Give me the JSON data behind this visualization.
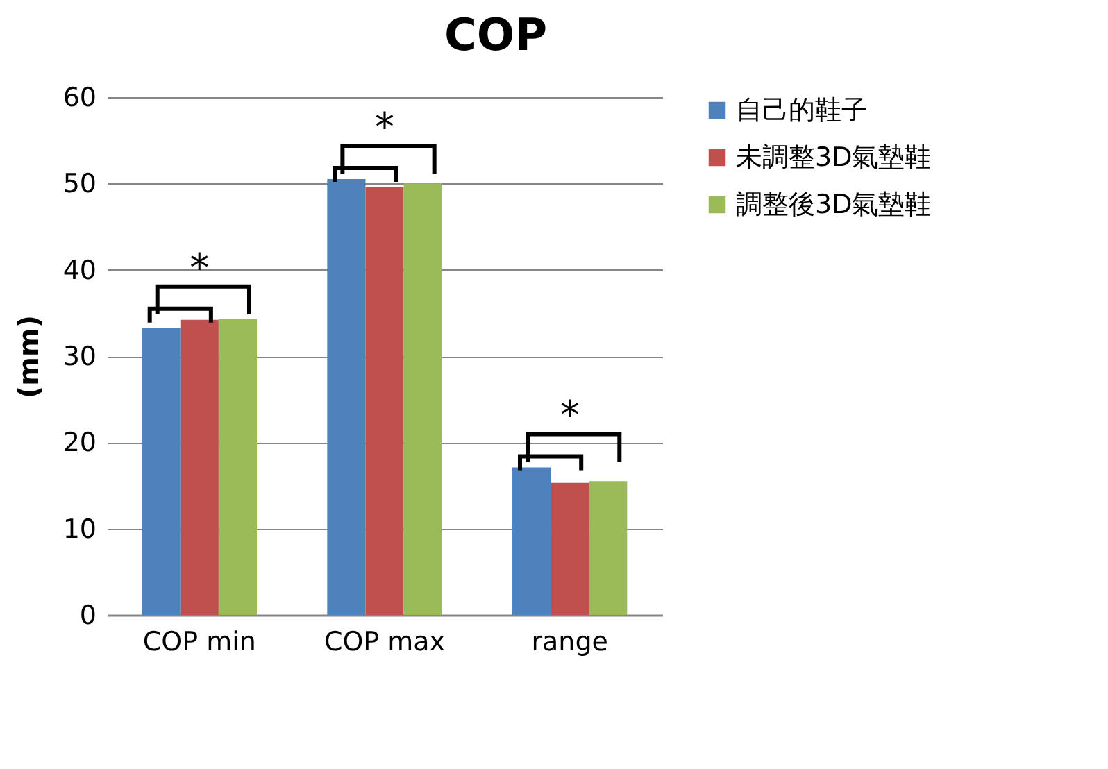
{
  "chart_data": {
    "type": "bar",
    "title": "COP",
    "ylabel": "(mm)",
    "categories": [
      "COP min",
      "COP max",
      "range"
    ],
    "series": [
      {
        "name": "自己的鞋子",
        "color": "#4f81bd",
        "values": [
          33.3,
          50.5,
          17.1
        ]
      },
      {
        "name": "未調整3D氣墊鞋",
        "color": "#c0504d",
        "values": [
          34.2,
          49.6,
          15.3
        ]
      },
      {
        "name": "調整後3D氣墊鞋",
        "color": "#9bbb59",
        "values": [
          34.3,
          50.0,
          15.5
        ]
      }
    ],
    "ylim": [
      0,
      60
    ],
    "yticks": [
      0,
      10,
      20,
      30,
      40,
      50,
      60
    ],
    "grid": "y",
    "legend": "right",
    "annotations": [
      "*",
      "*",
      "*"
    ]
  }
}
